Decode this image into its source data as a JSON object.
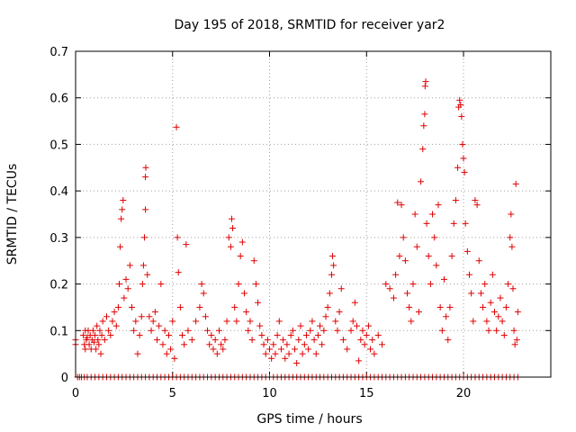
{
  "chart_data": {
    "type": "scatter",
    "title": "Day 195 of 2018, SRMTID for receiver yar2",
    "xlabel": "GPS time / hours",
    "ylabel": "SRMTID / TECUs",
    "xlim": [
      0,
      24.5
    ],
    "ylim": [
      0,
      0.7
    ],
    "xticks": [
      0,
      5,
      10,
      15,
      20
    ],
    "xtick_labels": [
      "0",
      "5",
      "10",
      "15",
      "20"
    ],
    "yticks": [
      0,
      0.1,
      0.2,
      0.3,
      0.4,
      0.5,
      0.6,
      0.7
    ],
    "ytick_labels": [
      "0",
      "0.1",
      "0.2",
      "0.3",
      "0.4",
      "0.5",
      "0.6",
      "0.7"
    ],
    "grid": true,
    "marker": "+",
    "color": "#e00000",
    "zero_points_x": [
      0.1,
      0.2,
      0.3,
      0.45,
      0.6,
      0.8,
      1.0,
      1.2,
      1.4,
      1.6,
      1.8,
      2.0,
      2.2,
      2.4,
      2.6,
      2.8,
      3.0,
      3.2,
      3.4,
      3.6,
      3.8,
      4.0,
      4.2,
      4.4,
      4.6,
      4.8,
      5.0,
      5.2,
      5.4,
      5.6,
      5.8,
      6.0,
      6.2,
      6.4,
      6.6,
      6.8,
      7.0,
      7.2,
      7.4,
      7.6,
      7.8,
      8.0,
      8.2,
      8.4,
      8.6,
      8.8,
      9.0,
      9.2,
      9.4,
      9.6,
      9.8,
      10.0,
      10.2,
      10.4,
      10.6,
      10.8,
      11.0,
      11.2,
      11.4,
      11.6,
      11.8,
      12.0,
      12.2,
      12.4,
      12.6,
      12.8,
      13.0,
      13.2,
      13.4,
      13.6,
      13.8,
      14.0,
      14.2,
      14.4,
      14.6,
      14.8,
      15.0,
      15.2,
      15.4,
      15.6,
      15.8,
      16.0,
      16.2,
      16.4,
      16.6,
      16.8,
      17.0,
      17.2,
      17.4,
      17.6,
      17.8,
      18.0,
      18.2,
      18.4,
      18.6,
      18.8,
      19.0,
      19.2,
      19.4,
      19.6,
      19.8,
      20.0,
      20.2,
      20.4,
      20.6,
      20.8,
      21.0,
      21.2,
      21.4,
      21.6,
      21.8,
      22.0,
      22.2,
      22.4,
      22.6,
      22.8
    ],
    "points": [
      [
        0.0,
        0.08
      ],
      [
        0.0,
        0.07
      ],
      [
        0.4,
        0.09
      ],
      [
        0.45,
        0.07
      ],
      [
        0.5,
        0.1
      ],
      [
        0.5,
        0.06
      ],
      [
        0.55,
        0.08
      ],
      [
        0.6,
        0.085
      ],
      [
        0.65,
        0.1
      ],
      [
        0.7,
        0.07
      ],
      [
        0.75,
        0.09
      ],
      [
        0.8,
        0.06
      ],
      [
        0.85,
        0.08
      ],
      [
        0.9,
        0.1
      ],
      [
        0.95,
        0.075
      ],
      [
        1.0,
        0.09
      ],
      [
        1.05,
        0.06
      ],
      [
        1.1,
        0.11
      ],
      [
        1.15,
        0.08
      ],
      [
        1.2,
        0.07
      ],
      [
        1.25,
        0.1
      ],
      [
        1.3,
        0.05
      ],
      [
        1.35,
        0.09
      ],
      [
        1.4,
        0.12
      ],
      [
        1.5,
        0.08
      ],
      [
        1.6,
        0.13
      ],
      [
        1.7,
        0.1
      ],
      [
        1.8,
        0.09
      ],
      [
        1.9,
        0.12
      ],
      [
        2.0,
        0.14
      ],
      [
        2.1,
        0.11
      ],
      [
        2.2,
        0.15
      ],
      [
        2.25,
        0.2
      ],
      [
        2.3,
        0.28
      ],
      [
        2.35,
        0.34
      ],
      [
        2.4,
        0.36
      ],
      [
        2.45,
        0.38
      ],
      [
        2.5,
        0.17
      ],
      [
        2.6,
        0.21
      ],
      [
        2.7,
        0.19
      ],
      [
        2.8,
        0.24
      ],
      [
        2.9,
        0.15
      ],
      [
        3.0,
        0.1
      ],
      [
        3.1,
        0.12
      ],
      [
        3.2,
        0.05
      ],
      [
        3.3,
        0.09
      ],
      [
        3.4,
        0.13
      ],
      [
        3.45,
        0.2
      ],
      [
        3.5,
        0.24
      ],
      [
        3.55,
        0.3
      ],
      [
        3.6,
        0.36
      ],
      [
        3.6,
        0.43
      ],
      [
        3.62,
        0.45
      ],
      [
        3.7,
        0.22
      ],
      [
        3.8,
        0.13
      ],
      [
        3.9,
        0.1
      ],
      [
        4.0,
        0.12
      ],
      [
        4.1,
        0.14
      ],
      [
        4.2,
        0.08
      ],
      [
        4.3,
        0.11
      ],
      [
        4.4,
        0.2
      ],
      [
        4.5,
        0.07
      ],
      [
        4.6,
        0.1
      ],
      [
        4.7,
        0.05
      ],
      [
        4.8,
        0.09
      ],
      [
        4.9,
        0.06
      ],
      [
        5.0,
        0.12
      ],
      [
        5.1,
        0.04
      ],
      [
        5.2,
        0.537
      ],
      [
        5.25,
        0.3
      ],
      [
        5.3,
        0.225
      ],
      [
        5.4,
        0.15
      ],
      [
        5.5,
        0.09
      ],
      [
        5.6,
        0.07
      ],
      [
        5.7,
        0.285
      ],
      [
        5.8,
        0.1
      ],
      [
        6.0,
        0.08
      ],
      [
        6.2,
        0.12
      ],
      [
        6.4,
        0.15
      ],
      [
        6.5,
        0.2
      ],
      [
        6.6,
        0.18
      ],
      [
        6.7,
        0.13
      ],
      [
        6.8,
        0.1
      ],
      [
        6.9,
        0.07
      ],
      [
        7.0,
        0.09
      ],
      [
        7.1,
        0.06
      ],
      [
        7.2,
        0.08
      ],
      [
        7.3,
        0.05
      ],
      [
        7.4,
        0.1
      ],
      [
        7.5,
        0.07
      ],
      [
        7.6,
        0.06
      ],
      [
        7.7,
        0.08
      ],
      [
        7.8,
        0.12
      ],
      [
        7.9,
        0.3
      ],
      [
        8.0,
        0.28
      ],
      [
        8.05,
        0.34
      ],
      [
        8.1,
        0.32
      ],
      [
        8.2,
        0.15
      ],
      [
        8.3,
        0.12
      ],
      [
        8.4,
        0.2
      ],
      [
        8.5,
        0.26
      ],
      [
        8.6,
        0.29
      ],
      [
        8.7,
        0.18
      ],
      [
        8.8,
        0.14
      ],
      [
        8.9,
        0.1
      ],
      [
        9.0,
        0.12
      ],
      [
        9.1,
        0.08
      ],
      [
        9.2,
        0.25
      ],
      [
        9.3,
        0.2
      ],
      [
        9.4,
        0.16
      ],
      [
        9.5,
        0.11
      ],
      [
        9.6,
        0.09
      ],
      [
        9.7,
        0.07
      ],
      [
        9.8,
        0.05
      ],
      [
        9.9,
        0.08
      ],
      [
        10.0,
        0.06
      ],
      [
        10.1,
        0.04
      ],
      [
        10.2,
        0.07
      ],
      [
        10.3,
        0.05
      ],
      [
        10.4,
        0.09
      ],
      [
        10.5,
        0.12
      ],
      [
        10.6,
        0.06
      ],
      [
        10.7,
        0.08
      ],
      [
        10.8,
        0.04
      ],
      [
        10.9,
        0.07
      ],
      [
        11.0,
        0.05
      ],
      [
        11.1,
        0.09
      ],
      [
        11.2,
        0.1
      ],
      [
        11.3,
        0.06
      ],
      [
        11.4,
        0.03
      ],
      [
        11.5,
        0.08
      ],
      [
        11.6,
        0.11
      ],
      [
        11.7,
        0.05
      ],
      [
        11.8,
        0.07
      ],
      [
        11.9,
        0.09
      ],
      [
        12.0,
        0.06
      ],
      [
        12.1,
        0.1
      ],
      [
        12.2,
        0.12
      ],
      [
        12.3,
        0.08
      ],
      [
        12.4,
        0.05
      ],
      [
        12.5,
        0.09
      ],
      [
        12.6,
        0.11
      ],
      [
        12.7,
        0.07
      ],
      [
        12.8,
        0.1
      ],
      [
        12.9,
        0.13
      ],
      [
        13.0,
        0.15
      ],
      [
        13.1,
        0.18
      ],
      [
        13.2,
        0.22
      ],
      [
        13.25,
        0.26
      ],
      [
        13.3,
        0.24
      ],
      [
        13.4,
        0.12
      ],
      [
        13.5,
        0.1
      ],
      [
        13.6,
        0.14
      ],
      [
        13.7,
        0.19
      ],
      [
        13.8,
        0.08
      ],
      [
        14.0,
        0.06
      ],
      [
        14.2,
        0.1
      ],
      [
        14.3,
        0.12
      ],
      [
        14.4,
        0.16
      ],
      [
        14.5,
        0.11
      ],
      [
        14.6,
        0.035
      ],
      [
        14.7,
        0.08
      ],
      [
        14.8,
        0.1
      ],
      [
        14.9,
        0.07
      ],
      [
        15.0,
        0.09
      ],
      [
        15.1,
        0.11
      ],
      [
        15.2,
        0.06
      ],
      [
        15.3,
        0.08
      ],
      [
        15.4,
        0.05
      ],
      [
        15.6,
        0.09
      ],
      [
        15.8,
        0.07
      ],
      [
        16.0,
        0.2
      ],
      [
        16.2,
        0.19
      ],
      [
        16.4,
        0.17
      ],
      [
        16.5,
        0.22
      ],
      [
        16.6,
        0.375
      ],
      [
        16.7,
        0.26
      ],
      [
        16.8,
        0.37
      ],
      [
        16.9,
        0.3
      ],
      [
        17.0,
        0.25
      ],
      [
        17.1,
        0.18
      ],
      [
        17.2,
        0.15
      ],
      [
        17.3,
        0.12
      ],
      [
        17.4,
        0.2
      ],
      [
        17.5,
        0.35
      ],
      [
        17.6,
        0.28
      ],
      [
        17.7,
        0.14
      ],
      [
        17.8,
        0.42
      ],
      [
        17.9,
        0.49
      ],
      [
        17.95,
        0.54
      ],
      [
        18.0,
        0.565
      ],
      [
        18.02,
        0.625
      ],
      [
        18.05,
        0.635
      ],
      [
        18.1,
        0.33
      ],
      [
        18.2,
        0.26
      ],
      [
        18.3,
        0.2
      ],
      [
        18.4,
        0.35
      ],
      [
        18.5,
        0.3
      ],
      [
        18.6,
        0.24
      ],
      [
        18.7,
        0.37
      ],
      [
        18.8,
        0.15
      ],
      [
        18.9,
        0.1
      ],
      [
        19.0,
        0.21
      ],
      [
        19.1,
        0.13
      ],
      [
        19.2,
        0.08
      ],
      [
        19.3,
        0.15
      ],
      [
        19.4,
        0.26
      ],
      [
        19.5,
        0.33
      ],
      [
        19.6,
        0.38
      ],
      [
        19.7,
        0.45
      ],
      [
        19.75,
        0.58
      ],
      [
        19.8,
        0.595
      ],
      [
        19.85,
        0.585
      ],
      [
        19.9,
        0.56
      ],
      [
        19.95,
        0.5
      ],
      [
        20.0,
        0.47
      ],
      [
        20.05,
        0.44
      ],
      [
        20.1,
        0.33
      ],
      [
        20.2,
        0.27
      ],
      [
        20.3,
        0.22
      ],
      [
        20.4,
        0.18
      ],
      [
        20.5,
        0.12
      ],
      [
        20.6,
        0.38
      ],
      [
        20.7,
        0.37
      ],
      [
        20.8,
        0.25
      ],
      [
        20.9,
        0.18
      ],
      [
        21.0,
        0.15
      ],
      [
        21.1,
        0.2
      ],
      [
        21.2,
        0.12
      ],
      [
        21.3,
        0.1
      ],
      [
        21.4,
        0.16
      ],
      [
        21.5,
        0.22
      ],
      [
        21.6,
        0.14
      ],
      [
        21.7,
        0.1
      ],
      [
        21.8,
        0.13
      ],
      [
        21.9,
        0.17
      ],
      [
        22.0,
        0.12
      ],
      [
        22.1,
        0.09
      ],
      [
        22.2,
        0.15
      ],
      [
        22.3,
        0.2
      ],
      [
        22.4,
        0.3
      ],
      [
        22.45,
        0.35
      ],
      [
        22.5,
        0.28
      ],
      [
        22.55,
        0.19
      ],
      [
        22.6,
        0.1
      ],
      [
        22.65,
        0.07
      ],
      [
        22.7,
        0.415
      ],
      [
        22.75,
        0.08
      ],
      [
        22.8,
        0.14
      ]
    ]
  }
}
